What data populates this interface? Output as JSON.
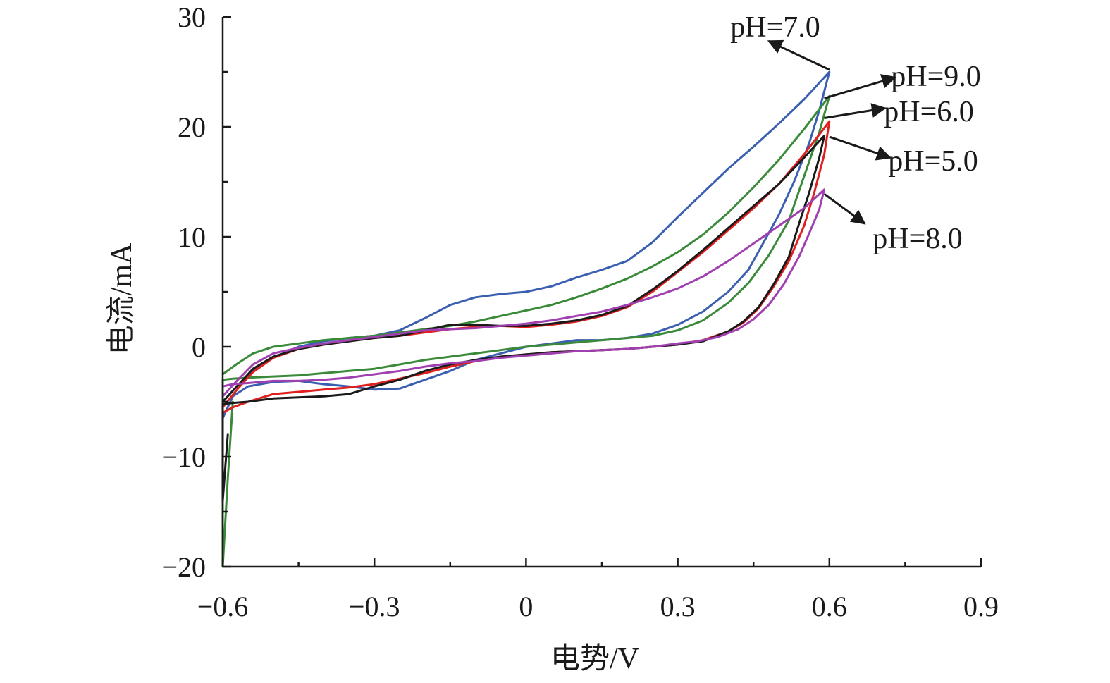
{
  "chart_data": {
    "type": "line",
    "title": "",
    "xlabel": "电势/V",
    "ylabel": "电流/mA",
    "xlim": [
      -0.6,
      0.9
    ],
    "ylim": [
      -20,
      30
    ],
    "xticks": [
      -0.6,
      -0.3,
      0,
      0.3,
      0.6,
      0.9
    ],
    "xtick_labels": [
      "−0.6",
      "−0.3",
      "0",
      "0.3",
      "0.6",
      "0.9"
    ],
    "yticks": [
      -20,
      -10,
      0,
      10,
      20,
      30
    ],
    "ytick_labels": [
      "−20",
      "−10",
      "0",
      "10",
      "20",
      "30"
    ],
    "grid": false,
    "legend": "none",
    "series": [
      {
        "name": "pH=7.0",
        "color": "#3a5fb0",
        "x": [
          -0.6,
          -0.57,
          -0.54,
          -0.5,
          -0.45,
          -0.4,
          -0.35,
          -0.3,
          -0.25,
          -0.2,
          -0.15,
          -0.1,
          -0.05,
          0,
          0.05,
          0.1,
          0.15,
          0.2,
          0.25,
          0.3,
          0.35,
          0.4,
          0.45,
          0.5,
          0.55,
          0.6,
          0.58,
          0.56,
          0.53,
          0.5,
          0.47,
          0.44,
          0.4,
          0.35,
          0.3,
          0.25,
          0.2,
          0.15,
          0.1,
          0.05,
          0,
          -0.05,
          -0.1,
          -0.15,
          -0.2,
          -0.25,
          -0.3,
          -0.35,
          -0.4,
          -0.45,
          -0.5,
          -0.55,
          -0.58,
          -0.6
        ],
        "y": [
          -5,
          -3.5,
          -2.2,
          -1,
          0,
          0.5,
          0.8,
          1,
          1.5,
          2.6,
          3.8,
          4.5,
          4.8,
          5,
          5.5,
          6.3,
          7,
          7.8,
          9.5,
          11.8,
          14,
          16.2,
          18.2,
          20.3,
          22.5,
          25,
          21.5,
          18.5,
          15,
          12,
          9.5,
          7,
          5,
          3.2,
          2,
          1.2,
          0.8,
          0.6,
          0.6,
          0.3,
          0,
          -0.6,
          -1.2,
          -2.2,
          -3,
          -3.8,
          -3.9,
          -3.6,
          -3.4,
          -3.1,
          -3.2,
          -3.6,
          -4.5,
          -6.5
        ]
      },
      {
        "name": "pH=9.0",
        "color": "#3a8a3a",
        "x": [
          -0.6,
          -0.57,
          -0.54,
          -0.5,
          -0.45,
          -0.4,
          -0.35,
          -0.3,
          -0.25,
          -0.2,
          -0.15,
          -0.1,
          -0.05,
          0,
          0.05,
          0.1,
          0.15,
          0.2,
          0.25,
          0.3,
          0.35,
          0.4,
          0.45,
          0.5,
          0.55,
          0.6,
          0.58,
          0.55,
          0.52,
          0.48,
          0.44,
          0.4,
          0.35,
          0.3,
          0.25,
          0.2,
          0.15,
          0.1,
          0.05,
          0,
          -0.05,
          -0.1,
          -0.15,
          -0.2,
          -0.25,
          -0.3,
          -0.35,
          -0.4,
          -0.45,
          -0.5,
          -0.55,
          -0.58,
          -0.6,
          -0.6,
          -0.59,
          -0.58
        ],
        "y": [
          -2.5,
          -1.5,
          -0.6,
          0,
          0.3,
          0.6,
          0.8,
          1,
          1.3,
          1.6,
          1.9,
          2.3,
          2.8,
          3.3,
          3.8,
          4.5,
          5.3,
          6.2,
          7.3,
          8.6,
          10.2,
          12.2,
          14.5,
          17,
          19.8,
          22.8,
          19.5,
          15.5,
          11.5,
          8.3,
          5.8,
          4,
          2.4,
          1.5,
          1,
          0.8,
          0.6,
          0.4,
          0.2,
          0,
          -0.3,
          -0.6,
          -0.9,
          -1.2,
          -1.6,
          -2,
          -2.2,
          -2.4,
          -2.6,
          -2.7,
          -2.8,
          -2.9,
          -3,
          -20,
          -12,
          -5
        ]
      },
      {
        "name": "pH=6.0",
        "color": "#e02020",
        "x": [
          -0.6,
          -0.57,
          -0.54,
          -0.5,
          -0.45,
          -0.4,
          -0.35,
          -0.3,
          -0.25,
          -0.2,
          -0.15,
          -0.1,
          -0.05,
          0,
          0.05,
          0.1,
          0.15,
          0.2,
          0.25,
          0.3,
          0.35,
          0.4,
          0.45,
          0.5,
          0.55,
          0.6,
          0.59,
          0.57,
          0.55,
          0.52,
          0.49,
          0.46,
          0.43,
          0.4,
          0.35,
          0.3,
          0.25,
          0.2,
          0.15,
          0.1,
          0.05,
          0,
          -0.05,
          -0.1,
          -0.15,
          -0.2,
          -0.25,
          -0.3,
          -0.35,
          -0.4,
          -0.45,
          -0.5,
          -0.55,
          -0.58,
          -0.6
        ],
        "y": [
          -5.5,
          -3.8,
          -2.3,
          -1,
          -0.2,
          0.2,
          0.5,
          0.8,
          1,
          1.3,
          1.6,
          1.8,
          1.9,
          1.8,
          2,
          2.3,
          2.8,
          3.6,
          5,
          6.8,
          8.6,
          10.6,
          12.6,
          14.8,
          17.5,
          20.5,
          17.5,
          14,
          11,
          7.8,
          5.5,
          3.5,
          2.2,
          1.4,
          0.6,
          0.2,
          0,
          -0.2,
          -0.3,
          -0.4,
          -0.5,
          -0.7,
          -0.9,
          -1.3,
          -1.8,
          -2.4,
          -2.9,
          -3.4,
          -3.7,
          -3.9,
          -4.1,
          -4.3,
          -5,
          -5.5,
          -6
        ]
      },
      {
        "name": "pH=5.0",
        "color": "#1a1a1a",
        "x": [
          -0.6,
          -0.57,
          -0.54,
          -0.5,
          -0.45,
          -0.4,
          -0.35,
          -0.3,
          -0.25,
          -0.2,
          -0.15,
          -0.1,
          -0.05,
          0,
          0.05,
          0.1,
          0.15,
          0.2,
          0.25,
          0.3,
          0.35,
          0.4,
          0.45,
          0.5,
          0.55,
          0.59,
          0.58,
          0.56,
          0.54,
          0.52,
          0.49,
          0.46,
          0.43,
          0.4,
          0.35,
          0.3,
          0.25,
          0.2,
          0.15,
          0.1,
          0.05,
          0,
          -0.05,
          -0.1,
          -0.15,
          -0.2,
          -0.25,
          -0.3,
          -0.35,
          -0.4,
          -0.45,
          -0.5,
          -0.55,
          -0.58,
          -0.6,
          -0.6,
          -0.59
        ],
        "y": [
          -5,
          -3.5,
          -2,
          -0.9,
          -0.2,
          0.2,
          0.5,
          0.8,
          1,
          1.5,
          2,
          2,
          1.9,
          1.9,
          2.1,
          2.4,
          2.9,
          3.7,
          5.2,
          6.9,
          8.8,
          10.8,
          12.8,
          14.8,
          17.2,
          19.2,
          17.2,
          14,
          11.2,
          8.2,
          5.7,
          3.6,
          2.3,
          1.4,
          0.5,
          0.2,
          0,
          -0.2,
          -0.3,
          -0.4,
          -0.5,
          -0.7,
          -0.9,
          -1.2,
          -1.6,
          -2.2,
          -3,
          -3.6,
          -4.3,
          -4.5,
          -4.6,
          -4.7,
          -5,
          -5.1,
          -5.2,
          -14,
          -8
        ]
      },
      {
        "name": "pH=8.0",
        "color": "#a040b0",
        "x": [
          -0.6,
          -0.57,
          -0.54,
          -0.5,
          -0.45,
          -0.4,
          -0.35,
          -0.3,
          -0.25,
          -0.2,
          -0.15,
          -0.1,
          -0.05,
          0,
          0.05,
          0.1,
          0.15,
          0.2,
          0.25,
          0.3,
          0.35,
          0.4,
          0.45,
          0.5,
          0.55,
          0.59,
          0.58,
          0.56,
          0.54,
          0.51,
          0.48,
          0.45,
          0.42,
          0.38,
          0.34,
          0.3,
          0.25,
          0.2,
          0.15,
          0.1,
          0.05,
          0,
          -0.05,
          -0.1,
          -0.15,
          -0.2,
          -0.25,
          -0.3,
          -0.35,
          -0.4,
          -0.45,
          -0.5,
          -0.55,
          -0.58,
          -0.6
        ],
        "y": [
          -4.5,
          -3,
          -1.6,
          -0.6,
          -0.1,
          0.3,
          0.6,
          0.9,
          1.2,
          1.5,
          1.6,
          1.7,
          1.9,
          2.1,
          2.4,
          2.8,
          3.2,
          3.8,
          4.5,
          5.3,
          6.4,
          7.8,
          9.4,
          11,
          12.6,
          14.3,
          12.5,
          10.3,
          8.2,
          5.7,
          3.8,
          2.5,
          1.6,
          0.9,
          0.5,
          0.3,
          0,
          -0.2,
          -0.3,
          -0.4,
          -0.6,
          -0.8,
          -1,
          -1.3,
          -1.5,
          -1.8,
          -2.2,
          -2.5,
          -2.8,
          -3,
          -3.1,
          -3.1,
          -3.3,
          -3.4,
          -3.6
        ]
      }
    ],
    "annotations": [
      {
        "text": "pH=7.0",
        "series": "pH=7.0",
        "arrow_from": [
          0.6,
          25.2
        ],
        "arrow_to": [
          0.48,
          27.8
        ]
      },
      {
        "text": "pH=9.0",
        "series": "pH=9.0",
        "arrow_from": [
          0.59,
          22.6
        ],
        "arrow_to": [
          0.73,
          24.5
        ]
      },
      {
        "text": "pH=6.0",
        "series": "pH=6.0",
        "arrow_from": [
          0.59,
          20.8
        ],
        "arrow_to": [
          0.71,
          21.7
        ]
      },
      {
        "text": "pH=5.0",
        "series": "pH=5.0",
        "arrow_from": [
          0.6,
          19.1
        ],
        "arrow_to": [
          0.72,
          17.2
        ]
      },
      {
        "text": "pH=8.0",
        "series": "pH=8.0",
        "arrow_from": [
          0.59,
          13.9
        ],
        "arrow_to": [
          0.67,
          11.2
        ]
      }
    ]
  }
}
